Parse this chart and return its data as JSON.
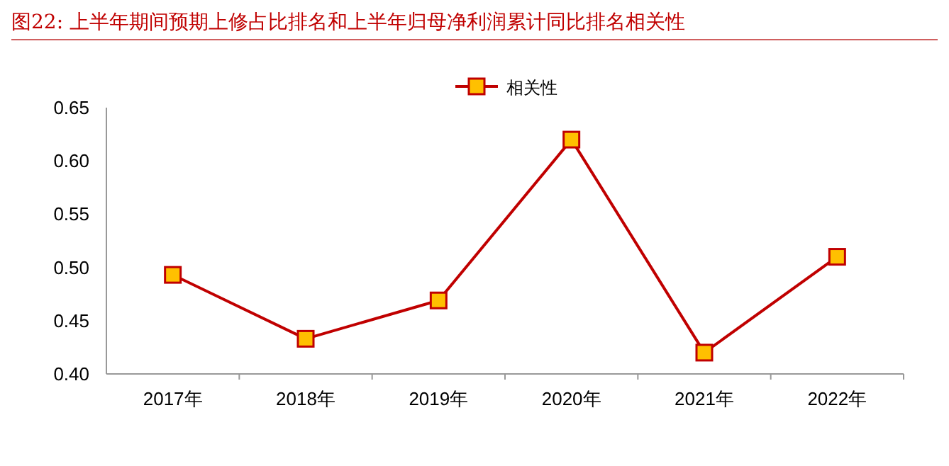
{
  "chart_data": {
    "type": "line",
    "title": "图22:  上半年期间预期上修占比排名和上半年归母净利润累计同比排名相关性",
    "categories": [
      "2017年",
      "2018年",
      "2019年",
      "2020年",
      "2021年",
      "2022年"
    ],
    "series": [
      {
        "name": "相关性",
        "color": "#c00000",
        "values": [
          0.493,
          0.433,
          0.469,
          0.62,
          0.42,
          0.51
        ],
        "colors": [
          "#ffc000",
          "#ffc000",
          "#ffc000",
          "#ffc000",
          "#ffc000",
          "#ffc000"
        ]
      }
    ],
    "ylim": [
      0.4,
      0.65
    ],
    "yticks": [
      {
        "value": 0.4,
        "label": "0.40"
      },
      {
        "value": 0.45,
        "label": "0.45"
      },
      {
        "value": 0.5,
        "label": "0.50"
      },
      {
        "value": 0.55,
        "label": "0.55"
      },
      {
        "value": 0.6,
        "label": "0.60"
      },
      {
        "value": 0.65,
        "label": "0.65"
      }
    ],
    "legend": "top",
    "marker": "square",
    "line_style": "solid"
  }
}
